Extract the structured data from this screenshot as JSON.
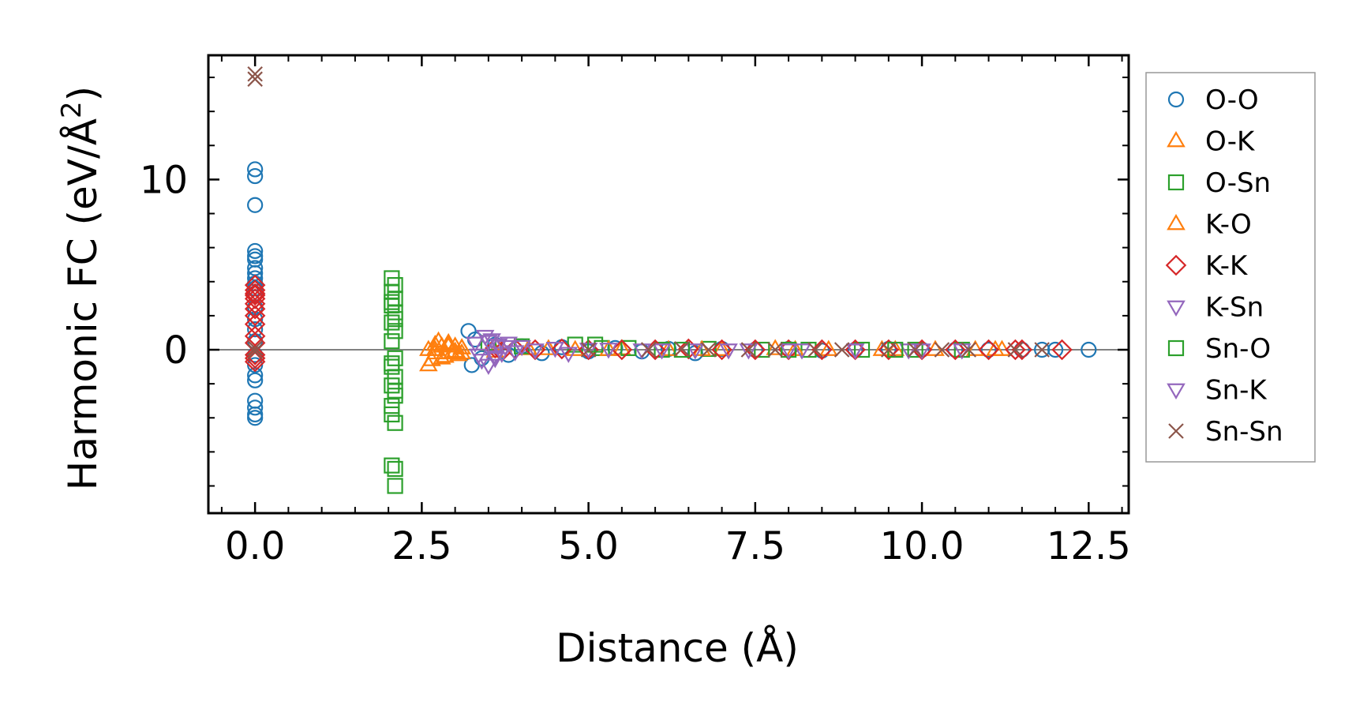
{
  "chart_data": {
    "type": "scatter",
    "xlabel": "Distance (Å)",
    "ylabel_main": "Harmonic FC (eV/Å",
    "ylabel_sup": "2",
    "ylabel_close": ")",
    "xlim": [
      -0.7,
      13.1
    ],
    "ylim": [
      -9.6,
      17.3
    ],
    "x_ticks": [
      0.0,
      2.5,
      5.0,
      7.5,
      10.0,
      12.5
    ],
    "x_tick_labels": [
      "0.0",
      "2.5",
      "5.0",
      "7.5",
      "10.0",
      "12.5"
    ],
    "y_ticks": [
      0,
      10
    ],
    "y_tick_labels": [
      "0",
      "10"
    ],
    "zero_line": true,
    "grid": false,
    "legend_position": "outside-right",
    "series": [
      {
        "name": "O-O",
        "marker": "circle",
        "color": "#1f77b4",
        "x": [
          0,
          0,
          0,
          0,
          0,
          0,
          0,
          0,
          0,
          0,
          0,
          0,
          0,
          0,
          0,
          0,
          0,
          0,
          0,
          0,
          0,
          0,
          0,
          0,
          3.2,
          3.25,
          3.3,
          3.4,
          3.6,
          3.8,
          4.0,
          4.3,
          4.6,
          5.0,
          5.4,
          5.8,
          6.2,
          6.6,
          7.0,
          7.5,
          8.0,
          8.5,
          9.0,
          9.5,
          10.0,
          10.5,
          11.0,
          11.5,
          11.8,
          12.0,
          12.5
        ],
        "y": [
          10.6,
          10.2,
          8.5,
          5.8,
          5.5,
          5.3,
          4.8,
          4.5,
          4.2,
          3.9,
          3.6,
          3.3,
          2.5,
          1.8,
          1.2,
          0.5,
          -0.3,
          -0.9,
          -1.5,
          -1.8,
          -3.0,
          -3.4,
          -3.8,
          -4.0,
          1.1,
          -0.9,
          0.6,
          -0.5,
          0.3,
          -0.3,
          0.2,
          -0.2,
          0.15,
          -0.1,
          0.1,
          -0.1,
          0.05,
          -0.2,
          0.05,
          0.0,
          0.05,
          -0.05,
          0.0,
          0.05,
          0.0,
          0.0,
          0.0,
          0.0,
          0.0,
          0.0,
          0.0
        ]
      },
      {
        "name": "O-K",
        "marker": "triangle-up",
        "color": "#ff7f0e",
        "x": [
          2.6,
          2.65,
          2.7,
          2.75,
          2.8,
          2.85,
          2.9,
          2.95,
          3.0,
          3.05,
          3.1,
          2.6,
          2.7,
          2.8,
          2.9,
          3.0,
          3.1,
          3.6,
          4.1,
          4.8,
          5.5,
          6.2,
          7.0,
          7.8,
          8.6,
          9.4,
          10.2,
          10.8,
          11.2
        ],
        "y": [
          -0.9,
          -0.6,
          0.3,
          0.5,
          0.2,
          -0.4,
          0.4,
          -0.2,
          0.2,
          -0.3,
          0.1,
          0.0,
          -0.2,
          -0.5,
          0.3,
          -0.1,
          0.1,
          -0.1,
          0.05,
          0.0,
          0.05,
          0.0,
          0.0,
          0.05,
          0.0,
          0.0,
          0.0,
          0.0,
          0.0
        ]
      },
      {
        "name": "O-Sn",
        "marker": "square",
        "color": "#2ca02c",
        "x": [
          2.05,
          2.1,
          2.05,
          2.1,
          2.05,
          2.1,
          2.05,
          2.1,
          2.05,
          2.1,
          2.05,
          2.1,
          2.05,
          2.1,
          2.05,
          2.1,
          2.05,
          2.1,
          3.5,
          4.0,
          4.8,
          5.2,
          5.6,
          6.1,
          6.8,
          7.6,
          8.3,
          9.1,
          9.9,
          10.6
        ],
        "y": [
          4.2,
          3.8,
          3.4,
          3.0,
          2.6,
          2.2,
          1.6,
          1.1,
          0.5,
          -0.5,
          -1.0,
          -1.6,
          -2.1,
          -2.7,
          -3.3,
          -4.3,
          -6.8,
          -8.0,
          0.4,
          0.2,
          0.3,
          0.1,
          0.1,
          0.0,
          0.05,
          0.0,
          0.0,
          0.0,
          0.0,
          0.0
        ]
      },
      {
        "name": "K-O",
        "marker": "triangle-up",
        "color": "#ff7f0e",
        "x": [
          2.7,
          2.9,
          3.1,
          4.4,
          5.3,
          6.7,
          8.1,
          9.6,
          11.1
        ],
        "y": [
          0.0,
          0.2,
          -0.2,
          0.05,
          0.0,
          0.0,
          0.0,
          0.0,
          0.0
        ]
      },
      {
        "name": "K-K",
        "marker": "diamond",
        "color": "#d62728",
        "x": [
          0,
          0,
          0,
          0,
          0,
          0,
          0,
          0,
          0,
          0,
          0,
          0,
          0,
          0,
          3.6,
          3.7,
          3.9,
          4.2,
          4.6,
          5.0,
          5.5,
          6.0,
          6.5,
          7.0,
          7.5,
          8.0,
          8.5,
          9.0,
          9.5,
          10.0,
          10.5,
          11.0,
          11.4,
          11.5,
          12.1
        ],
        "y": [
          3.8,
          3.5,
          3.2,
          3.0,
          2.7,
          2.4,
          2.0,
          1.5,
          0.8,
          0.4,
          -0.3,
          -0.5,
          -0.7,
          3.3,
          0.1,
          -0.1,
          0.05,
          0.0,
          0.05,
          0.0,
          0.0,
          0.0,
          0.05,
          0.0,
          0.0,
          0.0,
          0.0,
          0.0,
          0.0,
          0.0,
          0.0,
          0.0,
          0.0,
          0.0,
          0.0
        ]
      },
      {
        "name": "K-Sn",
        "marker": "triangle-down",
        "color": "#9467bd",
        "x": [
          3.3,
          3.4,
          3.45,
          3.5,
          3.55,
          3.6,
          3.65,
          3.7,
          3.8,
          3.9,
          4.0,
          4.5,
          5.0,
          5.8,
          6.6,
          7.4,
          8.2,
          9.0,
          9.8,
          10.6
        ],
        "y": [
          0.4,
          -0.6,
          0.8,
          -0.9,
          0.6,
          -0.4,
          0.3,
          -0.2,
          0.4,
          -0.1,
          0.2,
          0.1,
          0.05,
          0.0,
          0.0,
          0.0,
          0.0,
          0.0,
          0.0,
          0.0
        ]
      },
      {
        "name": "Sn-O",
        "marker": "square",
        "color": "#2ca02c",
        "x": [
          2.05,
          2.1,
          2.05,
          2.1,
          2.05,
          2.1,
          5.1,
          6.4,
          8.0,
          9.6
        ],
        "y": [
          2.8,
          1.8,
          -0.8,
          -2.4,
          -3.8,
          -7.0,
          0.3,
          0.0,
          0.0,
          0.0
        ]
      },
      {
        "name": "Sn-K",
        "marker": "triangle-down",
        "color": "#9467bd",
        "x": [
          3.35,
          3.5,
          3.6,
          3.75,
          4.2,
          4.7,
          5.3,
          6.1,
          7.1,
          8.0,
          9.0,
          10.0
        ],
        "y": [
          -0.3,
          0.5,
          -0.5,
          0.2,
          0.0,
          -0.2,
          0.05,
          0.0,
          0.0,
          0.0,
          0.0,
          0.0
        ]
      },
      {
        "name": "Sn-Sn",
        "marker": "x",
        "color": "#8c564b",
        "x": [
          0,
          0,
          0,
          0,
          5.0,
          5.9,
          6.4,
          6.8,
          7.4,
          7.8,
          8.4,
          8.8,
          9.5,
          9.9,
          10.3,
          10.7,
          11.4,
          11.8
        ],
        "y": [
          16.2,
          15.9,
          0.1,
          -0.1,
          0.0,
          0.0,
          0.05,
          0.0,
          0.0,
          0.0,
          0.0,
          0.0,
          0.0,
          0.0,
          0.0,
          0.0,
          0.0,
          0.0
        ]
      }
    ]
  }
}
